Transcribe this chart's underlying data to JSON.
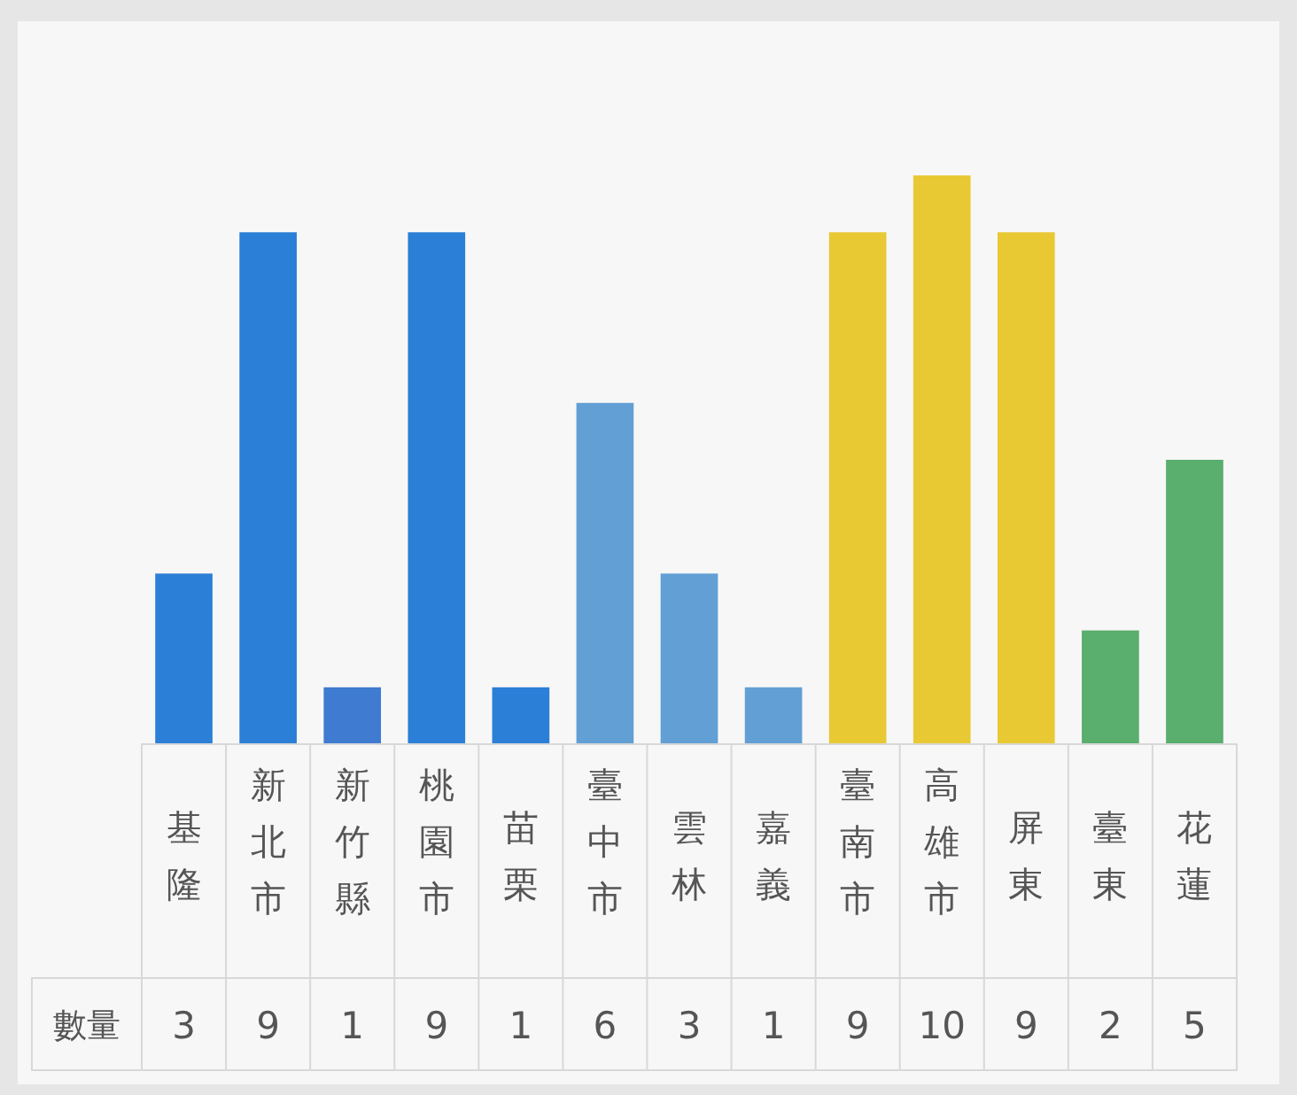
{
  "chart_data": {
    "type": "bar",
    "categories": [
      "基隆",
      "新北市",
      "新竹縣",
      "桃園市",
      "苗栗",
      "臺中市",
      "雲林",
      "嘉義",
      "臺南市",
      "高雄市",
      "屏東",
      "臺東",
      "花蓮"
    ],
    "series": [
      {
        "name": "數量",
        "values": [
          3,
          9,
          1,
          9,
          1,
          6,
          3,
          1,
          9,
          10,
          9,
          2,
          5
        ],
        "colors": [
          "#2b7fd6",
          "#2b7fd6",
          "#3f7bd0",
          "#2b7fd6",
          "#2b7fd6",
          "#619fd4",
          "#619fd4",
          "#619fd4",
          "#e8c934",
          "#e8c934",
          "#e8c934",
          "#5aae6e",
          "#5aae6e"
        ]
      }
    ],
    "data_labels": true
  }
}
